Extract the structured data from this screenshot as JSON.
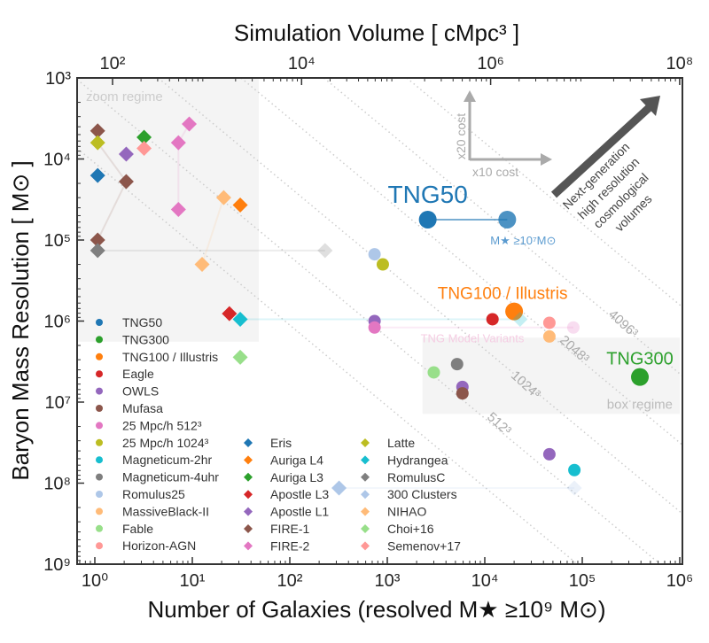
{
  "chart_data": {
    "type": "scatter",
    "title": "",
    "xlabel": "Number of Galaxies (resolved M★ ≥10⁹ M⊙)",
    "ylabel": "Baryon Mass Resolution [ M⊙ ]",
    "top_xlabel": "Simulation Volume [ cMpc³ ]",
    "x_scale": "log",
    "y_scale": "log",
    "y_inverted": true,
    "xlim": [
      0.66,
      1000000
    ],
    "ylim": [
      1000,
      1000000000
    ],
    "x_ticks": [
      "10⁰",
      "10¹",
      "10²",
      "10³",
      "10⁴",
      "10⁵",
      "10⁶"
    ],
    "y_ticks": [
      "10³",
      "10⁴",
      "10⁵",
      "10⁶",
      "10⁷",
      "10⁸",
      "10⁹"
    ],
    "top_ticks": [
      "10²",
      "10⁴",
      "10⁶",
      "10⁸"
    ],
    "grid": false,
    "regions": [
      {
        "label": "zoom regime",
        "x": [
          0.66,
          48
        ],
        "y": [
          1000,
          1800000
        ]
      },
      {
        "label": "box regime",
        "x": [
          2300,
          1000000
        ],
        "y": [
          1600000,
          14000000
        ]
      }
    ],
    "constant_particle_lines": [
      {
        "label": "512³",
        "offset": 3.2
      },
      {
        "label": "1024³",
        "offset": 2.35
      },
      {
        "label": "2048³",
        "offset": 1.5
      },
      {
        "label": "4096³",
        "offset": 0.65
      },
      {
        "label": "",
        "offset": -0.2
      },
      {
        "label": "",
        "offset": 4.05
      }
    ],
    "colors": {
      "TNG50": "#1f77b4",
      "TNG300": "#2ca02c",
      "TNG100 / Illustris": "#ff7f0e",
      "Eagle": "#d62728",
      "OWLS": "#9467bd",
      "Mufasa": "#8c564b",
      "25 Mpc/h 512³": "#e377c2",
      "25 Mpc/h 1024³": "#bcbd22",
      "Magneticum-2hr": "#17becf",
      "Magneticum-4uhr": "#7f7f7f",
      "Romulus25": "#aec7e8",
      "MassiveBlack-II": "#ffbb78",
      "Fable": "#98df8a",
      "Horizon-AGN": "#ff9896",
      "Eris": "#1f77b4",
      "Auriga L4": "#ff7f0e",
      "Auriga L3": "#2ca02c",
      "Apostle L3": "#d62728",
      "Apostle L1": "#9467bd",
      "FIRE-1": "#8c564b",
      "FIRE-2": "#e377c2",
      "Latte": "#bcbd22",
      "Hydrangea": "#17becf",
      "RomulusC": "#7f7f7f",
      "300 Clusters": "#aec7e8",
      "NIHAO": "#ffbb78",
      "Choi+16": "#98df8a",
      "Semenov+17": "#ff9896"
    },
    "legend": {
      "placement": "bottom-left",
      "columns": [
        [
          "TNG50",
          "TNG300",
          "TNG100 / Illustris",
          "Eagle",
          "OWLS",
          "Mufasa",
          "25 Mpc/h 512³",
          "25 Mpc/h 1024³",
          "Magneticum-2hr",
          "Magneticum-4uhr",
          "Romulus25",
          "MassiveBlack-II",
          "Fable",
          "Horizon-AGN"
        ],
        [
          "Eris",
          "Auriga L4",
          "Auriga L3",
          "Apostle L3",
          "Apostle L1",
          "FIRE-1",
          "FIRE-2"
        ],
        [
          "Latte",
          "Hydrangea",
          "RomulusC",
          "300 Clusters",
          "NIHAO",
          "Choi+16",
          "Semenov+17"
        ]
      ]
    },
    "points": [
      {
        "series": "TNG50",
        "marker": "circle",
        "N": 2600,
        "M": 56000,
        "size": "large"
      },
      {
        "series": "TNG50",
        "marker": "circle",
        "N": 17000,
        "M": 56000,
        "size": "large",
        "faded": 0.8
      },
      {
        "series": "Romulus25",
        "marker": "circle",
        "N": 740,
        "M": 150000
      },
      {
        "series": "25 Mpc/h 1024³",
        "marker": "circle",
        "N": 900,
        "M": 200000
      },
      {
        "series": "TNG100 / Illustris",
        "marker": "circle",
        "N": 20000,
        "M": 760000,
        "size": "large"
      },
      {
        "series": "Eagle",
        "marker": "circle",
        "N": 12000,
        "M": 950000
      },
      {
        "series": "Horizon-AGN",
        "marker": "circle",
        "N": 46000,
        "M": 1050000
      },
      {
        "series": "MassiveBlack-II",
        "marker": "circle",
        "N": 46000,
        "M": 1550000
      },
      {
        "series": "25 Mpc/h 512³",
        "marker": "circle",
        "N": 81000,
        "M": 1200000,
        "faded": 0.25
      },
      {
        "series": "OWLS",
        "marker": "circle",
        "N": 740,
        "M": 1000000
      },
      {
        "series": "25 Mpc/h 512³",
        "marker": "circle",
        "N": 740,
        "M": 1200000
      },
      {
        "series": "Magneticum-4uhr",
        "marker": "circle",
        "N": 5200,
        "M": 3400000
      },
      {
        "series": "Fable",
        "marker": "circle",
        "N": 3000,
        "M": 4300000
      },
      {
        "series": "OWLS",
        "marker": "circle",
        "N": 5900,
        "M": 6500000
      },
      {
        "series": "Mufasa",
        "marker": "circle",
        "N": 5900,
        "M": 7800000
      },
      {
        "series": "TNG300",
        "marker": "circle",
        "N": 390000,
        "M": 4900000,
        "size": "large"
      },
      {
        "series": "OWLS",
        "marker": "circle",
        "N": 46000,
        "M": 44000000
      },
      {
        "series": "Magneticum-2hr",
        "marker": "circle",
        "N": 83000,
        "M": 69000000
      },
      {
        "series": "FIRE-1",
        "marker": "diamond",
        "N": 1.07,
        "M": 4500
      },
      {
        "series": "Latte",
        "marker": "diamond",
        "N": 1.07,
        "M": 6300
      },
      {
        "series": "Auriga L3",
        "marker": "diamond",
        "N": 3.2,
        "M": 5400
      },
      {
        "series": "Semenov+17",
        "marker": "diamond",
        "N": 3.2,
        "M": 7400
      },
      {
        "series": "Apostle L1",
        "marker": "diamond",
        "N": 2.1,
        "M": 8700
      },
      {
        "series": "FIRE-2",
        "marker": "diamond",
        "N": 9.3,
        "M": 3700
      },
      {
        "series": "FIRE-2",
        "marker": "diamond",
        "N": 7.2,
        "M": 6300
      },
      {
        "series": "Eris",
        "marker": "diamond",
        "N": 1.07,
        "M": 16000
      },
      {
        "series": "FIRE-1",
        "marker": "diamond",
        "N": 2.1,
        "M": 19000
      },
      {
        "series": "NIHAO",
        "marker": "diamond",
        "N": 21,
        "M": 30000
      },
      {
        "series": "Auriga L4",
        "marker": "diamond",
        "N": 31,
        "M": 37000
      },
      {
        "series": "FIRE-2",
        "marker": "diamond",
        "N": 7.2,
        "M": 42000
      },
      {
        "series": "FIRE-1",
        "marker": "diamond",
        "N": 1.07,
        "M": 100000
      },
      {
        "series": "RomulusC",
        "marker": "diamond",
        "N": 1.07,
        "M": 135000
      },
      {
        "series": "RomulusC",
        "marker": "diamond",
        "N": 230,
        "M": 135000,
        "faded": 0.25
      },
      {
        "series": "NIHAO",
        "marker": "diamond",
        "N": 12.6,
        "M": 200000
      },
      {
        "series": "Apostle L3",
        "marker": "diamond",
        "N": 24,
        "M": 810000
      },
      {
        "series": "Hydrangea",
        "marker": "diamond",
        "N": 31,
        "M": 950000
      },
      {
        "series": "Choi+16",
        "marker": "diamond",
        "N": 31,
        "M": 2800000
      },
      {
        "series": "Hydrangea",
        "marker": "diamond",
        "N": 23000,
        "M": 950000,
        "faded": 0.25
      },
      {
        "series": "300 Clusters",
        "marker": "diamond",
        "N": 320,
        "M": 115000000
      },
      {
        "series": "300 Clusters",
        "marker": "diamond",
        "N": 83000,
        "M": 115000000,
        "faded": 0.25
      }
    ],
    "links": [
      [
        0,
        1
      ],
      [
        31,
        32
      ],
      [
        35,
        37
      ],
      [
        10,
        8
      ],
      [
        38,
        39
      ],
      [
        30,
        26
      ],
      [
        26,
        19
      ],
      [
        23,
        24
      ],
      [
        24,
        29
      ],
      [
        33,
        27
      ]
    ],
    "annotations": {
      "tng50": "TNG50",
      "tng50_sub": "M★ ≥10⁷M⊙",
      "tng100": "TNG100 / Illustris",
      "tng300": "TNG300",
      "variants": "TNG Model Variants",
      "cost_y": "x20 cost",
      "cost_x": "x10 cost",
      "next_gen": [
        "Next-generation",
        "high resolution",
        "cosmological",
        "volumes"
      ]
    }
  }
}
